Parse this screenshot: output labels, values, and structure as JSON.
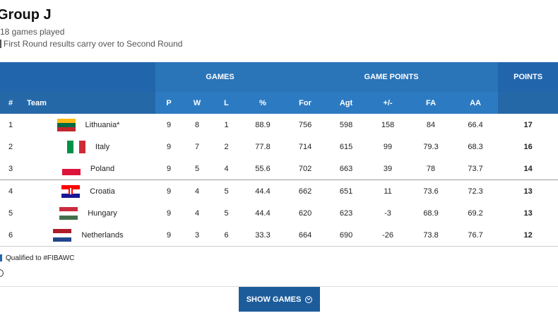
{
  "group_title": "Group J",
  "games_played": "18 games played",
  "carry_note": "First Round results carry over to Second Round",
  "header": {
    "games": "GAMES",
    "game_points": "GAME POINTS",
    "points": "POINTS",
    "rank": "#",
    "team": "Team",
    "p": "P",
    "w": "W",
    "l": "L",
    "pct": "%",
    "for": "For",
    "agt": "Agt",
    "diff": "+/-",
    "fa": "FA",
    "aa": "AA"
  },
  "rows": [
    {
      "rank": "1",
      "team": "Lithuania*",
      "flag": "lithuania",
      "p": "9",
      "w": "8",
      "l": "1",
      "pct": "88.9",
      "for": "756",
      "agt": "598",
      "diff": "158",
      "fa": "84",
      "aa": "66.4",
      "pts": "17"
    },
    {
      "rank": "2",
      "team": "Italy",
      "flag": "italy",
      "p": "9",
      "w": "7",
      "l": "2",
      "pct": "77.8",
      "for": "714",
      "agt": "615",
      "diff": "99",
      "fa": "79.3",
      "aa": "68.3",
      "pts": "16"
    },
    {
      "rank": "3",
      "team": "Poland",
      "flag": "poland",
      "p": "9",
      "w": "5",
      "l": "4",
      "pct": "55.6",
      "for": "702",
      "agt": "663",
      "diff": "39",
      "fa": "78",
      "aa": "73.7",
      "pts": "14"
    },
    {
      "rank": "4",
      "team": "Croatia",
      "flag": "croatia",
      "p": "9",
      "w": "4",
      "l": "5",
      "pct": "44.4",
      "for": "662",
      "agt": "651",
      "diff": "11",
      "fa": "73.6",
      "aa": "72.3",
      "pts": "13"
    },
    {
      "rank": "5",
      "team": "Hungary",
      "flag": "hungary",
      "p": "9",
      "w": "4",
      "l": "5",
      "pct": "44.4",
      "for": "620",
      "agt": "623",
      "diff": "-3",
      "fa": "68.9",
      "aa": "69.2",
      "pts": "13"
    },
    {
      "rank": "6",
      "team": "Netherlands",
      "flag": "netherlands",
      "p": "9",
      "w": "3",
      "l": "6",
      "pct": "33.3",
      "for": "664",
      "agt": "690",
      "diff": "-26",
      "fa": "73.8",
      "aa": "76.7",
      "pts": "12"
    }
  ],
  "legend": "Qualified to #FIBAWC",
  "show_games": "SHOW GAMES",
  "colors": {
    "header": "#2166ac",
    "button": "#1d5c9b"
  }
}
